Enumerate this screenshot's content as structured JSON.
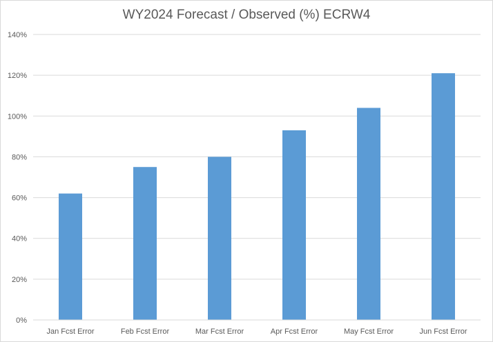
{
  "chart_data": {
    "type": "bar",
    "title": "WY2024 Forecast / Observed (%) ECRW4",
    "xlabel": "",
    "ylabel": "",
    "categories": [
      "Jan Fcst Error",
      "Feb Fcst Error",
      "Mar Fcst Error",
      "Apr Fcst Error",
      "May Fcst Error",
      "Jun Fcst Error"
    ],
    "values": [
      62,
      75,
      80,
      93,
      104,
      121
    ],
    "ylim": [
      0,
      140
    ],
    "yticks": [
      0,
      20,
      40,
      60,
      80,
      100,
      120,
      140
    ],
    "ytick_labels": [
      "0%",
      "20%",
      "40%",
      "60%",
      "80%",
      "100%",
      "120%",
      "140%"
    ],
    "grid": true,
    "legend": "none",
    "bar_color": "#5b9bd5",
    "grid_color": "#d9d9d9",
    "text_color": "#595959"
  }
}
